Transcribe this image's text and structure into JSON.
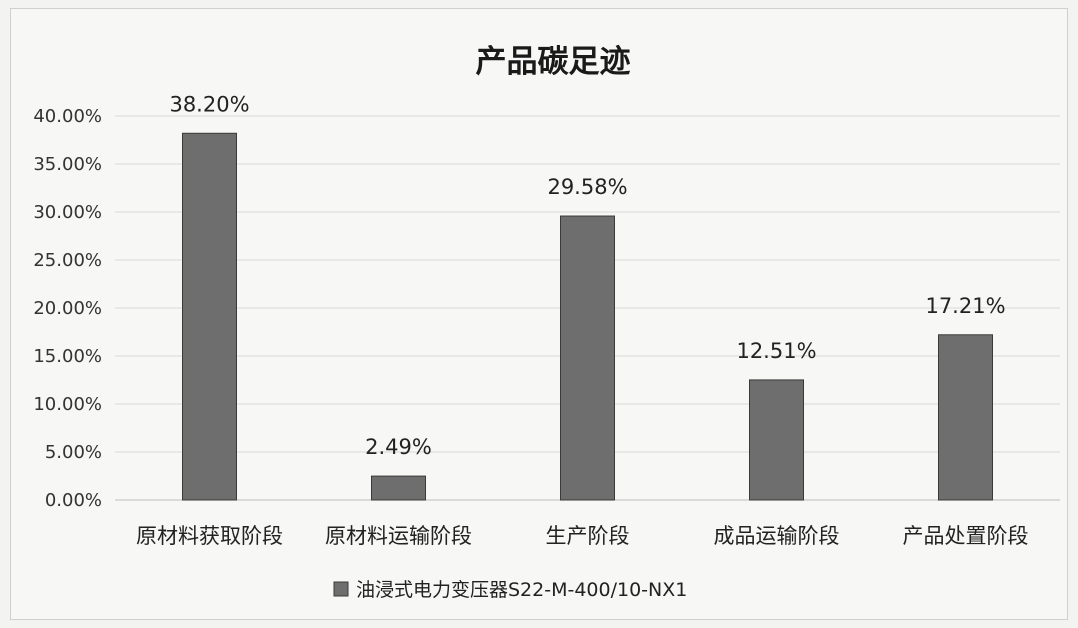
{
  "chart_data": {
    "type": "bar",
    "title": "产品碳足迹",
    "categories": [
      "原材料获取阶段",
      "原材料运输阶段",
      "生产阶段",
      "成品运输阶段",
      "产品处置阶段"
    ],
    "series": [
      {
        "name": "油浸式电力变压器S22-M-400/10-NX1",
        "values": [
          38.2,
          2.49,
          29.58,
          12.51,
          17.21
        ]
      }
    ],
    "data_labels": [
      "38.20%",
      "2.49%",
      "29.58%",
      "12.51%",
      "17.21%"
    ],
    "y_ticks": [
      "0.00%",
      "5.00%",
      "10.00%",
      "15.00%",
      "20.00%",
      "25.00%",
      "30.00%",
      "35.00%",
      "40.00%"
    ],
    "ylim": [
      0,
      40
    ],
    "y_step": 5,
    "grid": true,
    "legend_position": "bottom",
    "bar_color": "#6e6e6e"
  }
}
